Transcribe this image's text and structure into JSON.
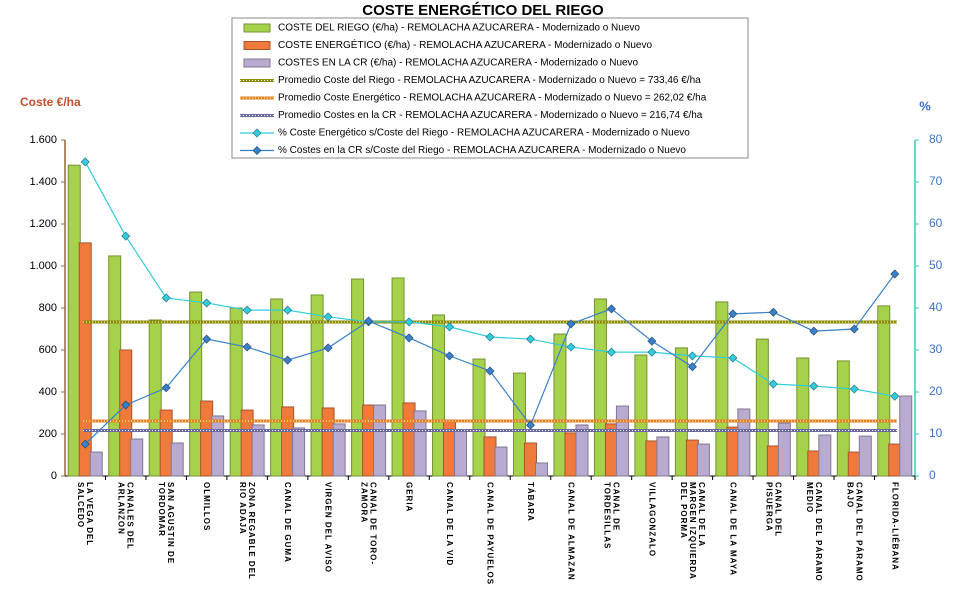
{
  "chart_data": {
    "type": "bar",
    "title": "COSTE ENERGÉTICO DEL RIEGO",
    "y_label": "Coste €/ha",
    "y2_label": "%",
    "categories": [
      "LA VEGA DEL SALCEDO",
      "CANALES DEL ARLANZON",
      "SAN AGUSTIN DE TORDOMAR",
      "OLMILLOS",
      "ZONA REGABLE DEL RIO ADAJA",
      "CANAL DE GUMA",
      "VIRGEN DEL AVISO",
      "CANAL DE TORO-ZAMORA",
      "GERIA",
      "CANAL DE LA VID",
      "CANAL DE PAYUELOS",
      "TÁBARA",
      "CANAL DE ALMAZAN",
      "CANAL DE TORDESILLAS",
      "VILLAGONZALO",
      "CANAL DE LA MARGEN IZQUIERDA DEL PORMA",
      "CANAL DE LA MAYA",
      "CANAL DEL PISUERGA",
      "CANAL DEL PÁRAMO MEDIO",
      "CANAL DEL PÁRAMO BAJO",
      "FLORIDA-LIÉBANA"
    ],
    "series": [
      {
        "name": "COSTE DEL RIEGO (€/ha) - REMOLACHA AZUCARERA - Modernizado o Nuevo",
        "type": "bar",
        "color": "#a6d14a",
        "values": [
          1480,
          1048,
          743,
          876,
          800,
          843,
          862,
          938,
          943,
          767,
          557,
          490,
          676,
          843,
          576,
          610,
          829,
          652,
          562,
          548,
          810
        ]
      },
      {
        "name": "COSTE ENERGÉTICO (€/ha) - REMOLACHA AZUCARERA - Modernizado o Nuevo",
        "type": "bar",
        "color": "#f07a3c",
        "values": [
          1110,
          600,
          314,
          357,
          314,
          329,
          324,
          338,
          348,
          267,
          186,
          157,
          205,
          248,
          167,
          171,
          233,
          143,
          119,
          114,
          152
        ]
      },
      {
        "name": "COSTES EN LA CR (€/ha) - REMOLACHA AZUCARERA - Modernizado o Nuevo",
        "type": "bar",
        "color": "#b8aad0",
        "values": [
          114,
          176,
          157,
          286,
          243,
          229,
          248,
          338,
          310,
          219,
          138,
          62,
          243,
          333,
          186,
          152,
          319,
          252,
          195,
          190,
          381
        ]
      },
      {
        "name": "Promedio Coste del Riego - REMOLACHA AZUCARERA - Modernizado o Nuevo = 733,46 €/ha",
        "type": "hline",
        "color": "#8c8c00",
        "value": 733.46
      },
      {
        "name": "Promedio Coste Energético - REMOLACHA AZUCARERA - Modernizado o Nuevo = 262,02 €/ha",
        "type": "hline",
        "color": "#e8801e",
        "value": 262.02
      },
      {
        "name": "Promedio Costes en la CR - REMOLACHA AZUCARERA - Modernizado o Nuevo = 216,74 €/ha",
        "type": "hline",
        "color": "#6a6aa0",
        "value": 216.74
      },
      {
        "name": "% Coste Energético s/Coste del Riego - REMOLACHA AZUCARERA - Modernizado o Nuevo",
        "type": "line",
        "axis": "y2",
        "color": "#33ccdd",
        "values": [
          74.8,
          57.1,
          42.4,
          41.2,
          39.5,
          39.5,
          37.9,
          36.7,
          36.7,
          35.5,
          33.1,
          32.6,
          30.7,
          29.5,
          29.5,
          28.6,
          28.1,
          21.9,
          21.4,
          20.7,
          19.0
        ]
      },
      {
        "name": "% Costes en la CR s/Coste del Riego - REMOLACHA AZUCARERA - Modernizado o Nuevo",
        "type": "line",
        "axis": "y2",
        "color": "#3a80c8",
        "values": [
          7.6,
          16.9,
          21.0,
          32.6,
          30.7,
          27.6,
          30.5,
          36.9,
          32.9,
          28.6,
          25.0,
          12.1,
          36.2,
          39.8,
          32.1,
          26.0,
          38.6,
          39.0,
          34.5,
          35.0,
          48.1
        ]
      }
    ],
    "ylim": [
      0,
      1600
    ],
    "yticks": [
      0,
      200,
      400,
      600,
      800,
      {
        "value": 1000,
        "label": "1.000"
      },
      {
        "value": 1200,
        "label": "1.200"
      },
      {
        "value": 1400,
        "label": "1.400"
      },
      {
        "value": 1600,
        "label": "1.600"
      }
    ],
    "y2lim": [
      0,
      80
    ],
    "y2ticks": [
      0,
      10,
      20,
      30,
      40,
      50,
      60,
      70,
      80
    ]
  }
}
